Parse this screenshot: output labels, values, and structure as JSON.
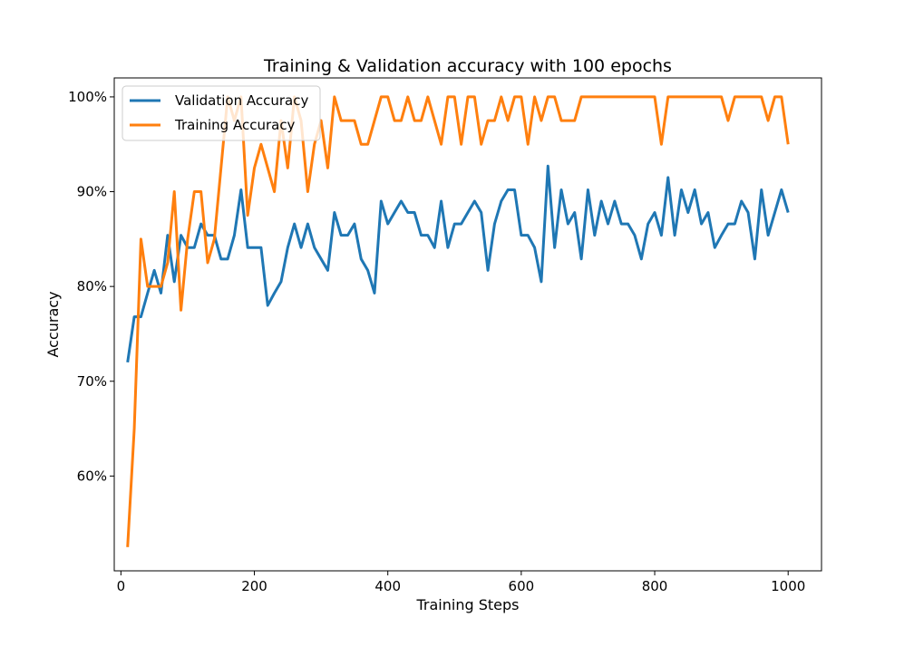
{
  "chart_data": {
    "type": "line",
    "title": "Training & Validation accuracy with 100 epochs",
    "xlabel": "Training Steps",
    "ylabel": "Accuracy",
    "xlim": [
      -10,
      1050
    ],
    "ylim": [
      50,
      102
    ],
    "x_ticks": [
      0,
      200,
      400,
      600,
      800,
      1000
    ],
    "x_tick_labels": [
      "0",
      "200",
      "400",
      "600",
      "800",
      "1000"
    ],
    "y_ticks": [
      60,
      70,
      80,
      90,
      100
    ],
    "y_tick_labels": [
      "60%",
      "70%",
      "80%",
      "90%",
      "100%"
    ],
    "grid": false,
    "legend_position": "top-left",
    "x": [
      10,
      20,
      30,
      40,
      50,
      60,
      70,
      80,
      90,
      100,
      110,
      120,
      130,
      140,
      150,
      160,
      170,
      180,
      190,
      200,
      210,
      220,
      230,
      240,
      250,
      260,
      270,
      280,
      290,
      300,
      310,
      320,
      330,
      340,
      350,
      360,
      370,
      380,
      390,
      400,
      410,
      420,
      430,
      440,
      450,
      460,
      470,
      480,
      490,
      500,
      510,
      520,
      530,
      540,
      550,
      560,
      570,
      580,
      590,
      600,
      610,
      620,
      630,
      640,
      650,
      660,
      670,
      680,
      690,
      700,
      710,
      720,
      730,
      740,
      750,
      760,
      770,
      780,
      790,
      800,
      810,
      820,
      830,
      840,
      850,
      860,
      870,
      880,
      890,
      900,
      910,
      920,
      930,
      940,
      950,
      960,
      970,
      980,
      990,
      1000
    ],
    "series": [
      {
        "name": "Validation Accuracy",
        "color": "#1f77b4",
        "values": [
          72.0,
          76.8,
          76.8,
          79.3,
          81.7,
          79.3,
          85.4,
          80.5,
          85.4,
          84.1,
          84.1,
          86.6,
          85.4,
          85.4,
          82.9,
          82.9,
          85.4,
          90.2,
          84.1,
          84.1,
          84.1,
          78.0,
          79.3,
          80.5,
          84.1,
          86.6,
          84.1,
          86.6,
          84.1,
          82.9,
          81.7,
          87.8,
          85.4,
          85.4,
          86.6,
          82.9,
          81.7,
          79.3,
          89.0,
          86.6,
          87.8,
          89.0,
          87.8,
          87.8,
          85.4,
          85.4,
          84.1,
          89.0,
          84.1,
          86.6,
          86.6,
          87.8,
          89.0,
          87.8,
          81.7,
          86.6,
          89.0,
          90.2,
          90.2,
          85.4,
          85.4,
          84.1,
          80.5,
          92.7,
          84.1,
          90.2,
          86.6,
          87.8,
          82.9,
          90.2,
          85.4,
          89.0,
          86.6,
          89.0,
          86.6,
          86.6,
          85.4,
          82.9,
          86.6,
          87.8,
          85.4,
          91.5,
          85.4,
          90.2,
          87.8,
          90.2,
          86.6,
          87.8,
          84.1,
          85.4,
          86.6,
          86.6,
          89.0,
          87.8,
          82.9,
          90.2,
          85.4,
          87.8,
          90.2,
          87.8
        ]
      },
      {
        "name": "Training Accuracy",
        "color": "#ff7f0e",
        "values": [
          52.5,
          65.0,
          85.0,
          80.0,
          80.0,
          80.0,
          82.5,
          90.0,
          77.5,
          85.0,
          90.0,
          90.0,
          82.5,
          85.0,
          92.5,
          100.0,
          97.5,
          100.0,
          87.5,
          92.5,
          95.0,
          92.5,
          90.0,
          97.5,
          92.5,
          100.0,
          97.5,
          90.0,
          95.0,
          97.5,
          92.5,
          100.0,
          97.5,
          97.5,
          97.5,
          95.0,
          95.0,
          97.5,
          100.0,
          100.0,
          97.5,
          97.5,
          100.0,
          97.5,
          97.5,
          100.0,
          97.5,
          95.0,
          100.0,
          100.0,
          95.0,
          100.0,
          100.0,
          95.0,
          97.5,
          97.5,
          100.0,
          97.5,
          100.0,
          100.0,
          95.0,
          100.0,
          97.5,
          100.0,
          100.0,
          97.5,
          97.5,
          97.5,
          100.0,
          100.0,
          100.0,
          100.0,
          100.0,
          100.0,
          100.0,
          100.0,
          100.0,
          100.0,
          100.0,
          100.0,
          95.0,
          100.0,
          100.0,
          100.0,
          100.0,
          100.0,
          100.0,
          100.0,
          100.0,
          100.0,
          97.5,
          100.0,
          100.0,
          100.0,
          100.0,
          100.0,
          97.5,
          100.0,
          100.0,
          95.0
        ]
      }
    ]
  }
}
